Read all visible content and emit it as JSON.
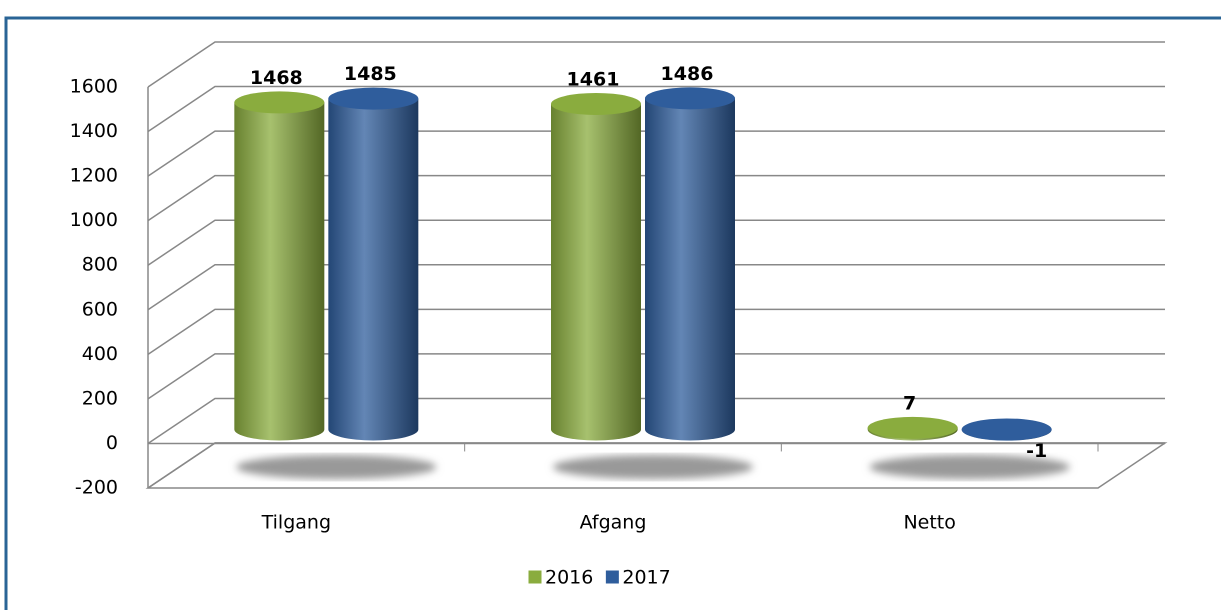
{
  "chart_data": {
    "type": "bar3d",
    "categories": [
      "Tilgang",
      "Afgang",
      "Netto"
    ],
    "series": [
      {
        "name": "2016",
        "color": "#8aac3e",
        "values": [
          1468,
          1461,
          7
        ]
      },
      {
        "name": "2017",
        "color": "#2f5d9c",
        "values": [
          1485,
          1486,
          -1
        ]
      }
    ],
    "ylim": [
      -200,
      1600
    ],
    "yticks": [
      -200,
      0,
      200,
      400,
      600,
      800,
      1000,
      1200,
      1400,
      1600
    ],
    "grid": true,
    "legend": "bottom"
  }
}
